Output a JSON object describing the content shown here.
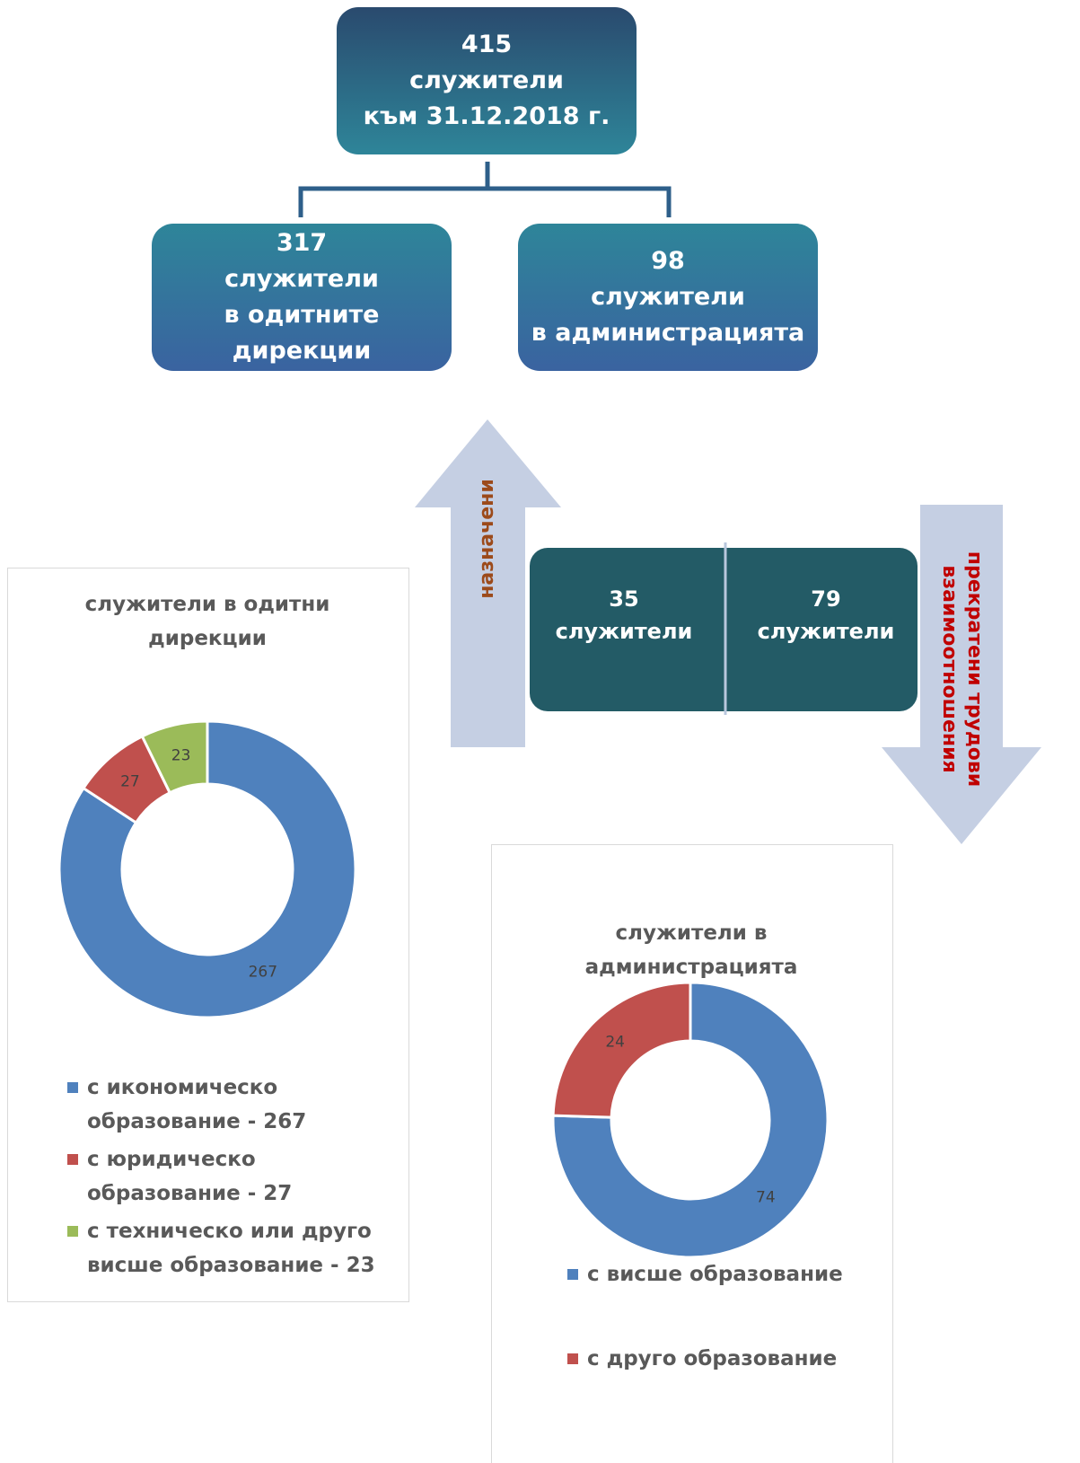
{
  "top": [
    "415",
    "служители",
    "към 31.12.2018 г."
  ],
  "left": [
    "317",
    "служители",
    "в одитните",
    "дирекции"
  ],
  "right": [
    "98",
    "служители",
    "в администрацията"
  ],
  "arrow_up": "назначени",
  "arrow_down": [
    "прекратени трудови",
    "взаимоотношения"
  ],
  "flow": [
    [
      "35",
      "служители"
    ],
    [
      "79",
      "служители"
    ]
  ],
  "charts": [
    {
      "type": "pie",
      "title": [
        "служители в одитни",
        "дирекции"
      ],
      "categories": [
        "с икономическо образование - 267",
        "с юридическо образование - 27",
        "с техническо или друго висше образование - 23"
      ],
      "values": [
        267,
        27,
        23
      ],
      "colors": [
        "#4f81bd",
        "#c0504d",
        "#9bbb59"
      ]
    },
    {
      "type": "pie",
      "title": [
        "служители в",
        "администрацията"
      ],
      "categories": [
        "с висше образование",
        "с друго образование"
      ],
      "values": [
        74,
        24
      ],
      "colors": [
        "#4f81bd",
        "#c0504d"
      ]
    }
  ]
}
